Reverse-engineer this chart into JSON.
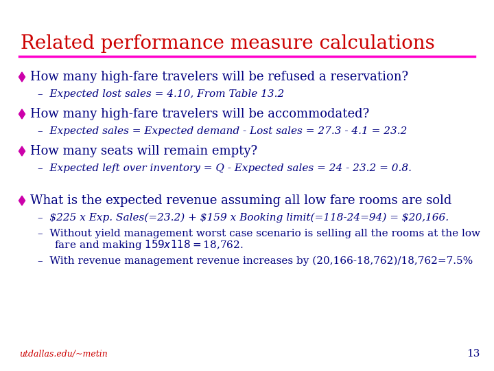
{
  "title": "Related performance measure calculations",
  "title_color": "#CC0000",
  "title_fontsize": 20,
  "line_color": "#FF00CC",
  "bg_color": "#FFFFFF",
  "bullet_color": "#CC00AA",
  "bullet1_main": "How many high-fare travelers will be refused a reservation?",
  "bullet1_sub": "–  Expected lost sales = 4.10, From Table 13.2",
  "bullet2_main": "How many high-fare travelers will be accommodated?",
  "bullet2_sub": "–  Expected sales = Expected demand - Lost sales = 27.3 - 4.1 = 23.2",
  "bullet3_main": "How many seats will remain empty?",
  "bullet3_sub": "–  Expected left over inventory = Q - Expected sales = 24 - 23.2 = 0.8.",
  "bullet4_main": "What is the expected revenue assuming all low fare rooms are sold",
  "bullet4_sub1": "–  $225 x Exp. Sales(=23.2) + $159 x Booking limit(=118-24=94) = $20,166.",
  "bullet4_sub2": "–  Without yield management worst case scenario is selling all the rooms at the low",
  "bullet4_sub2b": "     fare and making $159 x 118 = $18,762.",
  "bullet4_sub3": "–  With revenue management revenue increases by (20,166-18,762)/18,762=7.5%",
  "footer_text": "utdallas.edu/~metin",
  "footer_color": "#CC0000",
  "page_number": "13",
  "main_text_color": "#000080",
  "sub_text_color": "#000080",
  "main_fontsize": 13,
  "sub_fontsize": 11
}
